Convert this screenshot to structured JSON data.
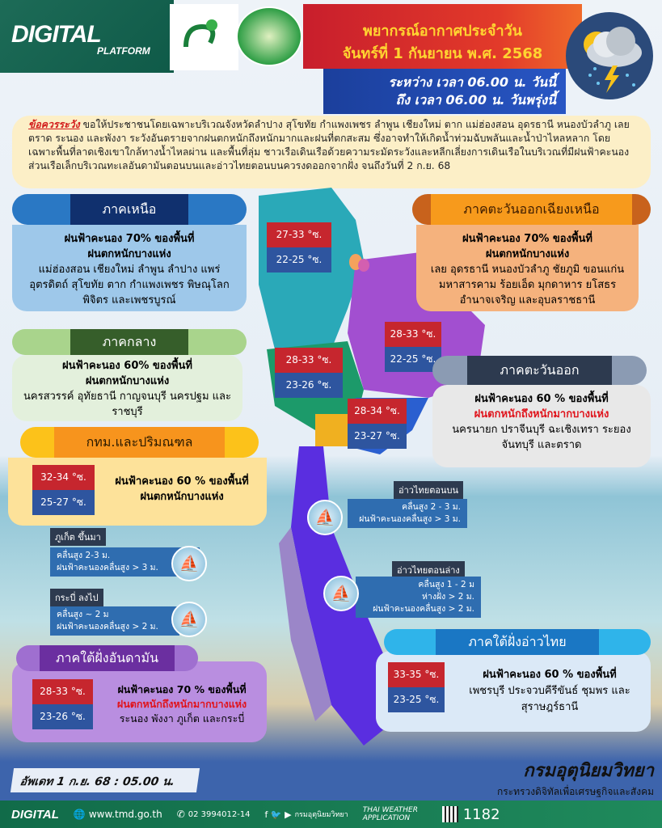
{
  "header": {
    "brand": "DIGITAL",
    "brand_sub": "PLATFORM",
    "ministry_logo": "ministry-digital-economy-logo",
    "tmd_seal": "METEOROLOGICAL DEPARTMENT",
    "title": "พยากรณ์อากาศประจำวัน",
    "date": "จันทร์ที่ 1 กันยายน พ.ศ. 2568",
    "period_1": "ระหว่าง เวลา 06.00 น. วันนี้",
    "period_2": "ถึง เวลา 06.00 น. วันพรุ่งนี้",
    "weather_icon": "thunderstorm-icon"
  },
  "warning": {
    "label": "ข้อควรระวัง",
    "text": " ขอให้ประชาชนโดยเฉพาะบริเวณจังหวัดลำปาง สุโขทัย กำแพงเพชร ลำพูน เชียงใหม่ ตาก แม่ฮ่องสอน อุดรธานี หนองบัวลำภู เลย ตราด ระนอง และพังงา ระวังอันตรายจากฝนตกหนักถึงหนักมากและฝนที่ตกสะสม ซึ่งอาจทำให้เกิดน้ำท่วมฉับพลันและน้ำป่าไหลหลาก โดยเฉพาะพื้นที่ลาดเชิงเขาใกล้ทางน้ำไหลผ่าน และพื้นที่ลุ่ม ชาวเรือเดินเรือด้วยความระมัดระวังและหลีกเลี่ยงการเดินเรือในบริเวณที่มีฝนฟ้าคะนอง ส่วนเรือเล็กบริเวณทะเลอันดามันตอนบนและอ่าวไทยตอนบนควรงดออกจากฝั่ง จนถึงวันที่ 2 ก.ย. 68"
  },
  "regions": {
    "north": {
      "name": "ภาคเหนือ",
      "rain": "ฝนฟ้าคะนอง 70% ของพื้นที่",
      "detail": "ฝนตกหนักบางแห่ง",
      "areas": "แม่ฮ่องสอน เชียงใหม่ ลำพูน ลำปาง แพร่ อุตรดิตถ์ สุโขทัย ตาก กำแพงเพชร พิษณุโลก พิจิตร และเพชรบูรณ์",
      "temp_high": "27-33 °ซ.",
      "temp_low": "22-25 °ซ."
    },
    "northeast": {
      "name": "ภาคตะวันออกเฉียงเหนือ",
      "rain": "ฝนฟ้าคะนอง 70% ของพื้นที่",
      "detail": "ฝนตกหนักบางแห่ง",
      "areas": "เลย อุดรธานี หนองบัวลำภู ชัยภูมิ ขอนแก่น มหาสารคาม ร้อยเอ็ด มุกดาหาร ยโสธร อำนาจเจริญ และอุบลราชธานี",
      "temp_high": "28-33 °ซ.",
      "temp_low": "22-25 °ซ."
    },
    "central": {
      "name": "ภาคกลาง",
      "rain": "ฝนฟ้าคะนอง 60% ของพื้นที่",
      "detail": "ฝนตกหนักบางแห่ง",
      "areas": "นครสวรรค์ อุทัยธานี กาญจนบุรี นครปฐม และราชบุรี",
      "temp_high": "28-33 °ซ.",
      "temp_low": "23-26 °ซ."
    },
    "east": {
      "name": "ภาคตะวันออก",
      "rain": "ฝนฟ้าคะนอง 60 % ของพื้นที่",
      "detail": "ฝนตกหนักถึงหนักมากบางแห่ง",
      "areas": "นครนายก ปราจีนบุรี ฉะเชิงเทรา ระยอง จันทบุรี และตราด",
      "temp_high": "28-34 °ซ.",
      "temp_low": "23-27 °ซ."
    },
    "bangkok": {
      "name": "กทม.และปริมณฑล",
      "rain": "ฝนฟ้าคะนอง 60 % ของพื้นที่",
      "detail": "ฝนตกหนักบางแห่ง",
      "temp_high": "32-34 °ซ.",
      "temp_low": "25-27 °ซ."
    },
    "south_andaman": {
      "name": "ภาคใต้ฝั่งอันดามัน",
      "rain": "ฝนฟ้าคะนอง 70 % ของพื้นที่",
      "detail": "ฝนตกหนักถึงหนักมากบางแห่ง",
      "areas": "ระนอง พังงา ภูเก็ต และกระบี่",
      "temp_high": "28-33 °ซ.",
      "temp_low": "23-26 °ซ."
    },
    "south_gulf": {
      "name": "ภาคใต้ฝั่งอ่าวไทย",
      "rain": "ฝนฟ้าคะนอง 60 % ของพื้นที่",
      "areas": "เพชรบุรี ประจวบคีรีขันธ์ ชุมพร และสุราษฎร์ธานี",
      "temp_high": "33-35 °ซ.",
      "temp_low": "23-25 °ซ."
    }
  },
  "seas": {
    "upper_gulf": {
      "name": "อ่าวไทยตอนบน",
      "l1": "คลื่นสูง 2 - 3 ม.",
      "l2": "ฝนฟ้าคะนองคลื่นสูง > 3 ม."
    },
    "phuket_up": {
      "name": "ภูเก็ต ขึ้นมา",
      "l1": "คลื่นสูง 2-3 ม.",
      "l2": "ฝนฟ้าคะนองคลื่นสูง > 3 ม."
    },
    "lower_gulf": {
      "name": "อ่าวไทยตอนล่าง",
      "l1": "คลื่นสูง 1 - 2 ม",
      "l2": "ห่างฝั่ง > 2 ม.",
      "l3": "ฝนฟ้าคะนองคลื่นสูง > 2 ม."
    },
    "krabi_down": {
      "name": "กระบี่ ลงไป",
      "l1": "คลื่นสูง ~ 2 ม",
      "l2": "ฝนฟ้าคะนองคลื่นสูง > 2 ม."
    }
  },
  "update": "อัพเดท 1 ก.ย. 68 : 05.00 น.",
  "agency": {
    "name": "กรมอุตุนิยมวิทยา",
    "ministry": "กระทรวงดิจิทัลเพื่อเศรษฐกิจและสังคม"
  },
  "footer": {
    "brand": "DIGITAL",
    "website": "www.tmd.go.th",
    "phone": "02 3994012-14",
    "social": "กรมอุตุนิยมวิทยา",
    "app": "THAI WEATHER APPLICATION",
    "hotline": "1182"
  },
  "colors": {
    "hot": "#c6262e",
    "cool": "#2e559f",
    "warning": "#d21b1b"
  }
}
